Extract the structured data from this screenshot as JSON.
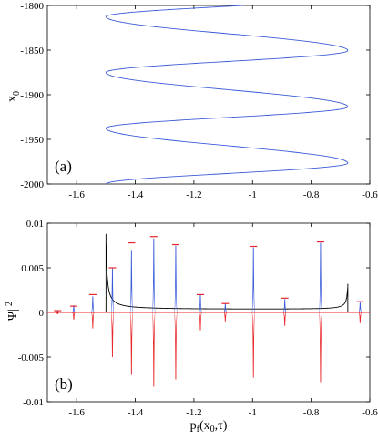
{
  "figure": {
    "background": "#ffffff"
  },
  "chart_data": [
    {
      "panel": "(a)",
      "type": "line",
      "xlabel": "",
      "ylabel": "x0",
      "ylabel_main": "x",
      "ylabel_sub": "0",
      "xlim": [
        -1.7,
        -0.6
      ],
      "ylim": [
        -2000,
        -1800
      ],
      "xticks": [
        -1.6,
        -1.4,
        -1.2,
        -1,
        -0.8,
        -0.6
      ],
      "xtick_labels": [
        "-1.6",
        "-1.4",
        "-1.2",
        "-1",
        "-0.8",
        "-0.6"
      ],
      "yticks": [
        -1800,
        -1850,
        -1900,
        -1950,
        -2000
      ],
      "ytick_labels": [
        "-1800",
        "-1850",
        "-1900",
        "-1950",
        "-2000"
      ],
      "grid": false,
      "series": [
        {
          "color": "#3a5bd9",
          "curve": "sinusoid",
          "x_min": -1.5,
          "x_max": -0.675,
          "extrema": [
            {
              "x0": -2000.0,
              "p": -1.5
            },
            {
              "x0": -1976.5,
              "p": -0.675
            },
            {
              "x0": -1937.5,
              "p": -1.5
            },
            {
              "x0": -1913.5,
              "p": -0.675
            },
            {
              "x0": -1875.0,
              "p": -1.5
            },
            {
              "x0": -1850.5,
              "p": -0.675
            },
            {
              "x0": -1812.5,
              "p": -1.5
            },
            {
              "x0": -1800.0,
              "p": -1.03
            }
          ]
        }
      ]
    },
    {
      "panel": "(b)",
      "type": "line",
      "xlabel": "pf(x0,τ)",
      "xlabel_parts": [
        "p",
        "f",
        "(x",
        "0",
        ",τ)"
      ],
      "ylabel": "|Ψ| 2",
      "ylabel_main": "|Ψ|",
      "ylabel_sup": "2",
      "xlim": [
        -1.7,
        -0.6
      ],
      "ylim": [
        -0.01,
        0.01
      ],
      "xticks": [
        -1.6,
        -1.4,
        -1.2,
        -1,
        -0.8,
        -0.6
      ],
      "xtick_labels": [
        "-1.6",
        "-1.4",
        "-1.2",
        "-1",
        "-0.8",
        "-0.6"
      ],
      "yticks": [
        0.01,
        0.005,
        0,
        -0.005,
        -0.01
      ],
      "ytick_labels": [
        "0.01",
        "0.005",
        "0",
        "-0.005",
        "-0.01"
      ],
      "grid": false,
      "colors": {
        "positive": "#3a5bd9",
        "negative": "#e8262a",
        "classical": "#000000",
        "markers": "#e8262a",
        "baseline": "#e8262a"
      },
      "peaks": [
        {
          "x": -1.665,
          "value": 0.0002
        },
        {
          "x": -1.61,
          "value": 0.0008
        },
        {
          "x": -1.545,
          "value": 0.0018
        },
        {
          "x": -1.478,
          "value": 0.005
        },
        {
          "x": -1.413,
          "value": 0.007
        },
        {
          "x": -1.337,
          "value": 0.0083
        },
        {
          "x": -1.262,
          "value": 0.0075
        },
        {
          "x": -1.178,
          "value": 0.002
        },
        {
          "x": -1.093,
          "value": 0.001
        },
        {
          "x": -0.997,
          "value": 0.0073
        },
        {
          "x": -0.89,
          "value": 0.0015
        },
        {
          "x": -0.768,
          "value": 0.0078
        },
        {
          "x": -0.633,
          "value": 0.0012
        }
      ],
      "markers": [
        {
          "x": -1.665,
          "value": 0.0002
        },
        {
          "x": -1.61,
          "value": 0.0007
        },
        {
          "x": -1.545,
          "value": 0.002
        },
        {
          "x": -1.478,
          "value": 0.005
        },
        {
          "x": -1.413,
          "value": 0.0078
        },
        {
          "x": -1.337,
          "value": 0.0085
        },
        {
          "x": -1.262,
          "value": 0.0076
        },
        {
          "x": -1.178,
          "value": 0.002
        },
        {
          "x": -1.093,
          "value": 0.001
        },
        {
          "x": -0.997,
          "value": 0.0074
        },
        {
          "x": -0.89,
          "value": 0.0016
        },
        {
          "x": -0.768,
          "value": 0.0079
        },
        {
          "x": -0.633,
          "value": 0.0012
        }
      ],
      "classical": {
        "x_left": -1.5,
        "x_right": -0.675,
        "left_peak": 0.0088,
        "right_peak": 0.0032,
        "middle_level": 0.0003
      },
      "annotations": []
    }
  ]
}
